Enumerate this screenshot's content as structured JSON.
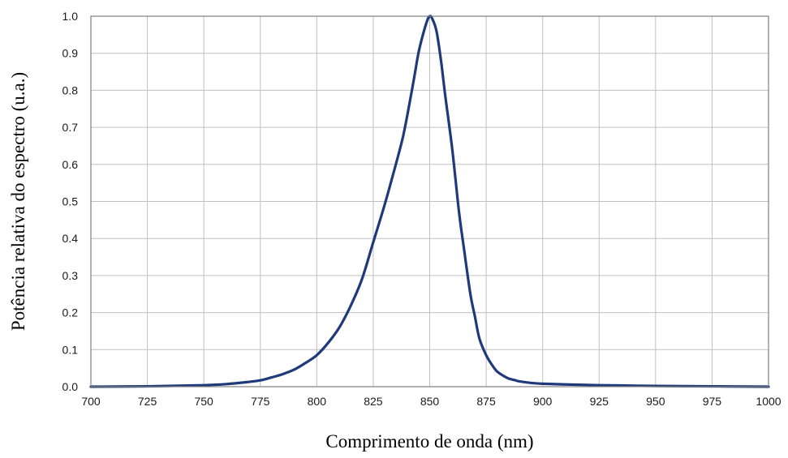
{
  "chart_data": {
    "type": "line",
    "title": "",
    "xlabel": "Comprimento de onda (nm)",
    "ylabel": "Potência relativa do espectro (u.a.)",
    "xlim": [
      700,
      1000
    ],
    "ylim": [
      0,
      1.0
    ],
    "xticks": [
      "700",
      "725",
      "750",
      "775",
      "800",
      "825",
      "850",
      "875",
      "900",
      "925",
      "950",
      "975",
      "1000"
    ],
    "yticks": [
      "0.0",
      "0.1",
      "0.2",
      "0.3",
      "0.4",
      "0.5",
      "0.6",
      "0.7",
      "0.8",
      "0.9",
      "1.0"
    ],
    "grid": true,
    "legend": "none",
    "colors": {
      "line": "#1f3a7a",
      "grid": "#c0c0c0",
      "frame": "#7f7f7f"
    },
    "series": [
      {
        "x": [
          700,
          725,
          750,
          760,
          770,
          775,
          780,
          785,
          790,
          795,
          800,
          805,
          810,
          815,
          820,
          825,
          830,
          835,
          838,
          840,
          843,
          845,
          847,
          849,
          850,
          851,
          853,
          855,
          857,
          860,
          863,
          865,
          868,
          870,
          872,
          875,
          878,
          880,
          883,
          885,
          888,
          890,
          895,
          900,
          910,
          925,
          950,
          975,
          1000
        ],
        "y": [
          0.0,
          0.001,
          0.004,
          0.007,
          0.013,
          0.017,
          0.025,
          0.034,
          0.046,
          0.064,
          0.085,
          0.118,
          0.16,
          0.218,
          0.29,
          0.39,
          0.49,
          0.6,
          0.67,
          0.73,
          0.83,
          0.9,
          0.95,
          0.99,
          1.0,
          0.995,
          0.96,
          0.88,
          0.78,
          0.64,
          0.47,
          0.38,
          0.25,
          0.19,
          0.13,
          0.085,
          0.055,
          0.04,
          0.028,
          0.022,
          0.017,
          0.014,
          0.01,
          0.008,
          0.006,
          0.004,
          0.002,
          0.001,
          0.0
        ]
      }
    ]
  }
}
